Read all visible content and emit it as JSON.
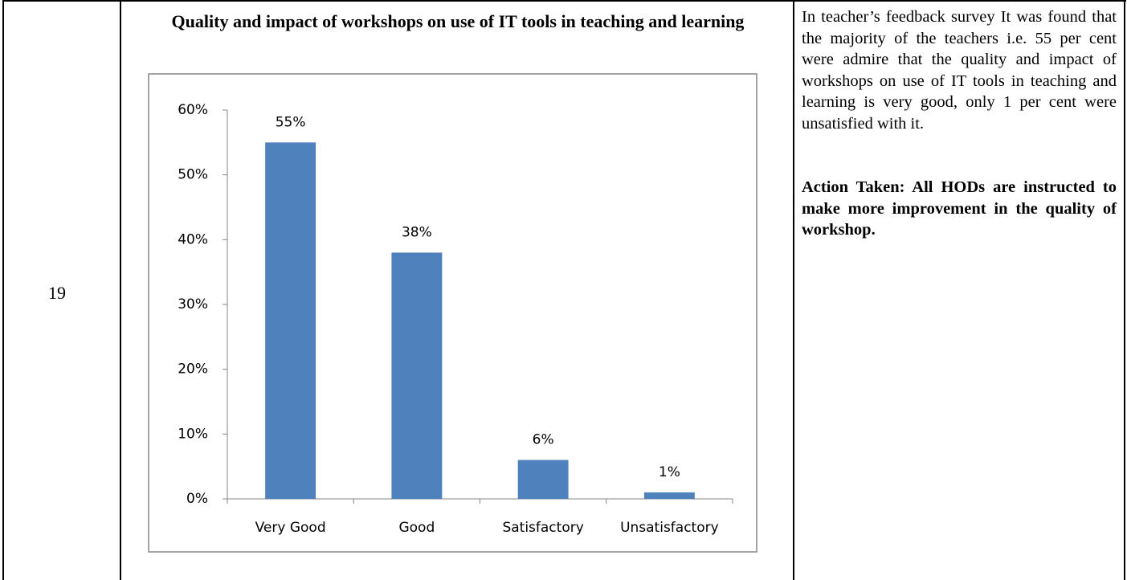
{
  "table": {
    "row_number": "19",
    "note": "In teacher’s feedback survey It was found that the majority of the teachers i.e. 55 per cent were admire that the quality and impact of workshops on use of IT tools in teaching and learning is very good, only 1 per cent were unsatisfied with it.",
    "action": "Action Taken: All HODs are instructed to make more improvement in the quality of workshop."
  },
  "chart_data": {
    "type": "bar",
    "title": "Quality and impact of workshops on use of IT tools in teaching and learning",
    "categories": [
      "Very Good",
      "Good",
      "Satisfactory",
      "Unsatisfactory"
    ],
    "values": [
      55,
      38,
      6,
      1
    ],
    "value_labels": [
      "55%",
      "38%",
      "6%",
      "1%"
    ],
    "color": "#4f81bd",
    "ylim": [
      0,
      60
    ],
    "yticks": [
      {
        "value": 0,
        "label": "0%"
      },
      {
        "value": 10,
        "label": "10%"
      },
      {
        "value": 20,
        "label": "20%"
      },
      {
        "value": 30,
        "label": "30%"
      },
      {
        "value": 40,
        "label": "40%"
      },
      {
        "value": 50,
        "label": "50%"
      },
      {
        "value": 60,
        "label": "60%"
      }
    ],
    "grid": false
  }
}
